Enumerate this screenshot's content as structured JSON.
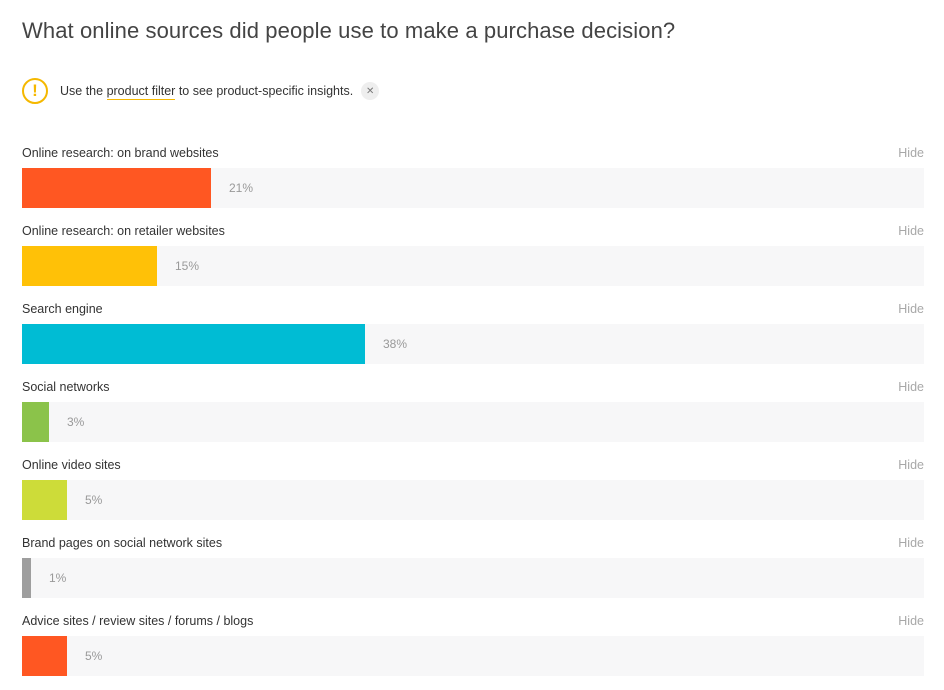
{
  "title": "What online sources did people use to make a purchase decision?",
  "notice": {
    "icon": "warning-icon",
    "icon_glyph": "!",
    "prefix": "Use the ",
    "link": "product filter",
    "suffix": " to see product-specific insights.",
    "close_glyph": "✕",
    "accent_color": "#f5b800"
  },
  "hide_label": "Hide",
  "chart_data": {
    "type": "bar",
    "orientation": "horizontal",
    "categories": [
      "Online research: on brand websites",
      "Online research: on retailer websites",
      "Search engine",
      "Social networks",
      "Online video sites",
      "Brand pages on social network sites",
      "Advice sites / review sites / forums / blogs"
    ],
    "values": [
      21,
      15,
      38,
      3,
      5,
      1,
      5
    ],
    "value_labels": [
      "21%",
      "15%",
      "38%",
      "3%",
      "5%",
      "1%",
      "5%"
    ],
    "colors": [
      "#ff5722",
      "#ffc107",
      "#00bcd4",
      "#8bc34a",
      "#cddc39",
      "#9e9e9e",
      "#ff5722"
    ],
    "xlim": [
      0,
      100
    ],
    "title": "What online sources did people use to make a purchase decision?",
    "xlabel": "",
    "ylabel": "",
    "grid": false,
    "legend": "none"
  }
}
